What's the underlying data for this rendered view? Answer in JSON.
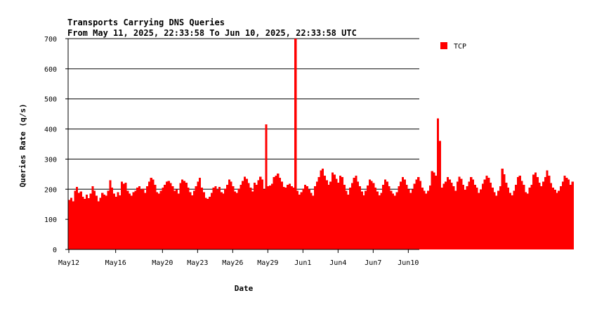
{
  "chart_data": {
    "type": "bar",
    "title": "Transports Carrying DNS Queries",
    "subtitle": "From May 11, 2025, 22:33:58 To Jun 10, 2025, 22:33:58 UTC",
    "xlabel": "Date",
    "ylabel": "Queries Rate (q/s)",
    "ylim": [
      0,
      700
    ],
    "yticks": [
      0,
      100,
      200,
      300,
      400,
      500,
      600,
      700
    ],
    "grid": "horizontal",
    "legend_position": "top-right",
    "x_tick_labels": [
      "May12",
      "May16",
      "May20",
      "May23",
      "May26",
      "May29",
      "Jun1",
      "Jun4",
      "Jun7",
      "Jun10"
    ],
    "x_tick_days": [
      0,
      4,
      8,
      11,
      14,
      17,
      20,
      23,
      26,
      29
    ],
    "x_range_days": [
      -0.06,
      29.94
    ],
    "series": [
      {
        "name": "TCP",
        "color": "#ff0000",
        "start_day": -0.06,
        "step_hours": 4,
        "values": [
          165,
          172,
          160,
          195,
          208,
          188,
          192,
          175,
          168,
          182,
          170,
          185,
          210,
          195,
          178,
          160,
          172,
          188,
          182,
          178,
          195,
          230,
          205,
          185,
          175,
          190,
          180,
          225,
          218,
          222,
          195,
          185,
          178,
          190,
          195,
          205,
          210,
          198,
          202,
          188,
          210,
          225,
          238,
          232,
          215,
          190,
          185,
          195,
          205,
          215,
          225,
          228,
          220,
          210,
          195,
          200,
          185,
          220,
          232,
          228,
          222,
          205,
          190,
          180,
          195,
          210,
          225,
          238,
          205,
          190,
          172,
          168,
          175,
          188,
          205,
          210,
          198,
          208,
          190,
          185,
          202,
          215,
          232,
          225,
          210,
          192,
          188,
          202,
          215,
          228,
          242,
          235,
          220,
          205,
          192,
          222,
          215,
          230,
          242,
          232,
          200,
          415,
          210,
          212,
          218,
          240,
          245,
          252,
          238,
          225,
          208,
          205,
          215,
          218,
          210,
          205,
          700,
          195,
          182,
          190,
          202,
          215,
          210,
          198,
          188,
          178,
          210,
          225,
          240,
          262,
          268,
          245,
          230,
          215,
          225,
          255,
          248,
          235,
          222,
          245,
          240,
          215,
          195,
          182,
          205,
          220,
          238,
          245,
          225,
          210,
          192,
          180,
          195,
          212,
          232,
          228,
          220,
          205,
          192,
          180,
          188,
          215,
          232,
          225,
          210,
          195,
          185,
          178,
          190,
          210,
          225,
          240,
          232,
          215,
          200,
          188,
          200,
          218,
          232,
          240,
          228,
          205,
          195,
          185,
          195,
          212,
          260,
          255,
          245,
          435,
          360,
          205,
          218,
          225,
          240,
          232,
          222,
          210,
          195,
          225,
          242,
          235,
          215,
          198,
          210,
          225,
          240,
          232,
          215,
          205,
          188,
          200,
          218,
          232,
          245,
          238,
          222,
          205,
          190,
          178,
          195,
          210,
          268,
          250,
          222,
          205,
          188,
          180,
          195,
          215,
          240,
          245,
          228,
          215,
          190,
          185,
          205,
          215,
          248,
          255,
          240,
          222,
          210,
          225,
          240,
          262,
          245,
          220,
          205,
          198,
          188,
          195,
          210,
          225,
          245,
          238,
          232,
          215,
          225
        ]
      }
    ]
  }
}
